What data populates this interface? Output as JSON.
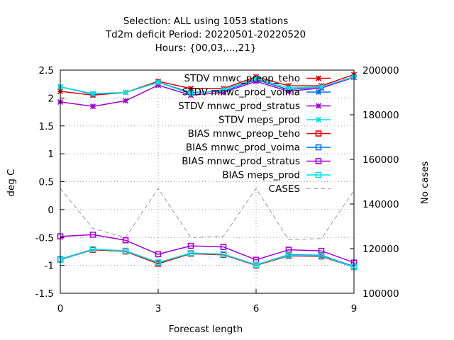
{
  "title_lines": [
    "Selection: ALL using  1053 stations",
    "Td2m deficit   Period: 20220501-20220520",
    "Hours: {00,03,...,21}"
  ],
  "chart_data": {
    "type": "line",
    "xlabel": "Forecast length",
    "ylabel": "deg C",
    "y2label": "No cases",
    "xlim": [
      0,
      9
    ],
    "ylim": [
      -1.5,
      2.5
    ],
    "y2lim": [
      100000,
      200000
    ],
    "x": [
      0,
      1,
      2,
      3,
      4,
      5,
      6,
      7,
      8,
      9
    ],
    "xticks": [
      0,
      3,
      6,
      9
    ],
    "yticks": [
      "-1.5",
      "-1",
      "-0.5",
      "0",
      "0.5",
      "1",
      "1.5",
      "2",
      "2.5"
    ],
    "y2ticks": [
      "100000",
      "120000",
      "140000",
      "160000",
      "180000",
      "200000"
    ],
    "grid": true,
    "legend_position": "top-right",
    "series": [
      {
        "name": "STDV mnwc_preop_teho",
        "axis": "y",
        "color": "#e00000",
        "marker": "x-star",
        "dashed": false,
        "values": [
          2.12,
          2.05,
          2.1,
          2.3,
          2.17,
          2.17,
          2.38,
          2.22,
          2.22,
          2.42
        ]
      },
      {
        "name": "STDV mnwc_prod_voima",
        "axis": "y",
        "color": "#0070e0",
        "marker": "x-star",
        "dashed": false,
        "values": [
          2.2,
          2.07,
          2.1,
          2.28,
          2.1,
          2.12,
          2.33,
          2.15,
          2.2,
          2.37
        ]
      },
      {
        "name": "STDV mnwc_prod_stratus",
        "axis": "y",
        "color": "#a000d0",
        "marker": "x-star",
        "dashed": false,
        "values": [
          1.93,
          1.85,
          1.95,
          2.23,
          2.05,
          2.1,
          2.3,
          2.12,
          2.18,
          2.37
        ]
      },
      {
        "name": "STDV meps_prod",
        "axis": "y",
        "color": "#00e0e0",
        "marker": "x-star",
        "dashed": false,
        "values": [
          2.2,
          2.08,
          2.1,
          2.28,
          2.08,
          2.15,
          2.35,
          2.18,
          2.2,
          2.38
        ]
      },
      {
        "name": "BIAS mnwc_preop_teho",
        "axis": "y",
        "color": "#e00000",
        "marker": "square",
        "dashed": false,
        "values": [
          -0.9,
          -0.72,
          -0.75,
          -0.97,
          -0.79,
          -0.81,
          -1.0,
          -0.83,
          -0.84,
          -1.03
        ]
      },
      {
        "name": "BIAS mnwc_prod_voima",
        "axis": "y",
        "color": "#0070e0",
        "marker": "square",
        "dashed": false,
        "values": [
          -0.89,
          -0.71,
          -0.74,
          -0.95,
          -0.78,
          -0.8,
          -0.99,
          -0.81,
          -0.82,
          -1.02
        ]
      },
      {
        "name": "BIAS mnwc_prod_stratus",
        "axis": "y",
        "color": "#a000d0",
        "marker": "square",
        "dashed": false,
        "values": [
          -0.48,
          -0.45,
          -0.55,
          -0.8,
          -0.65,
          -0.67,
          -0.9,
          -0.72,
          -0.74,
          -0.95
        ]
      },
      {
        "name": "BIAS meps_prod",
        "axis": "y",
        "color": "#00e0e0",
        "marker": "square",
        "dashed": false,
        "values": [
          -0.9,
          -0.71,
          -0.74,
          -0.95,
          -0.78,
          -0.8,
          -0.99,
          -0.82,
          -0.83,
          -1.03
        ]
      },
      {
        "name": "CASES",
        "axis": "y2",
        "color": "#999999",
        "marker": "none",
        "dashed": true,
        "values": [
          147000,
          129000,
          125000,
          147000,
          125000,
          125500,
          147000,
          124000,
          124500,
          146000
        ]
      }
    ]
  }
}
